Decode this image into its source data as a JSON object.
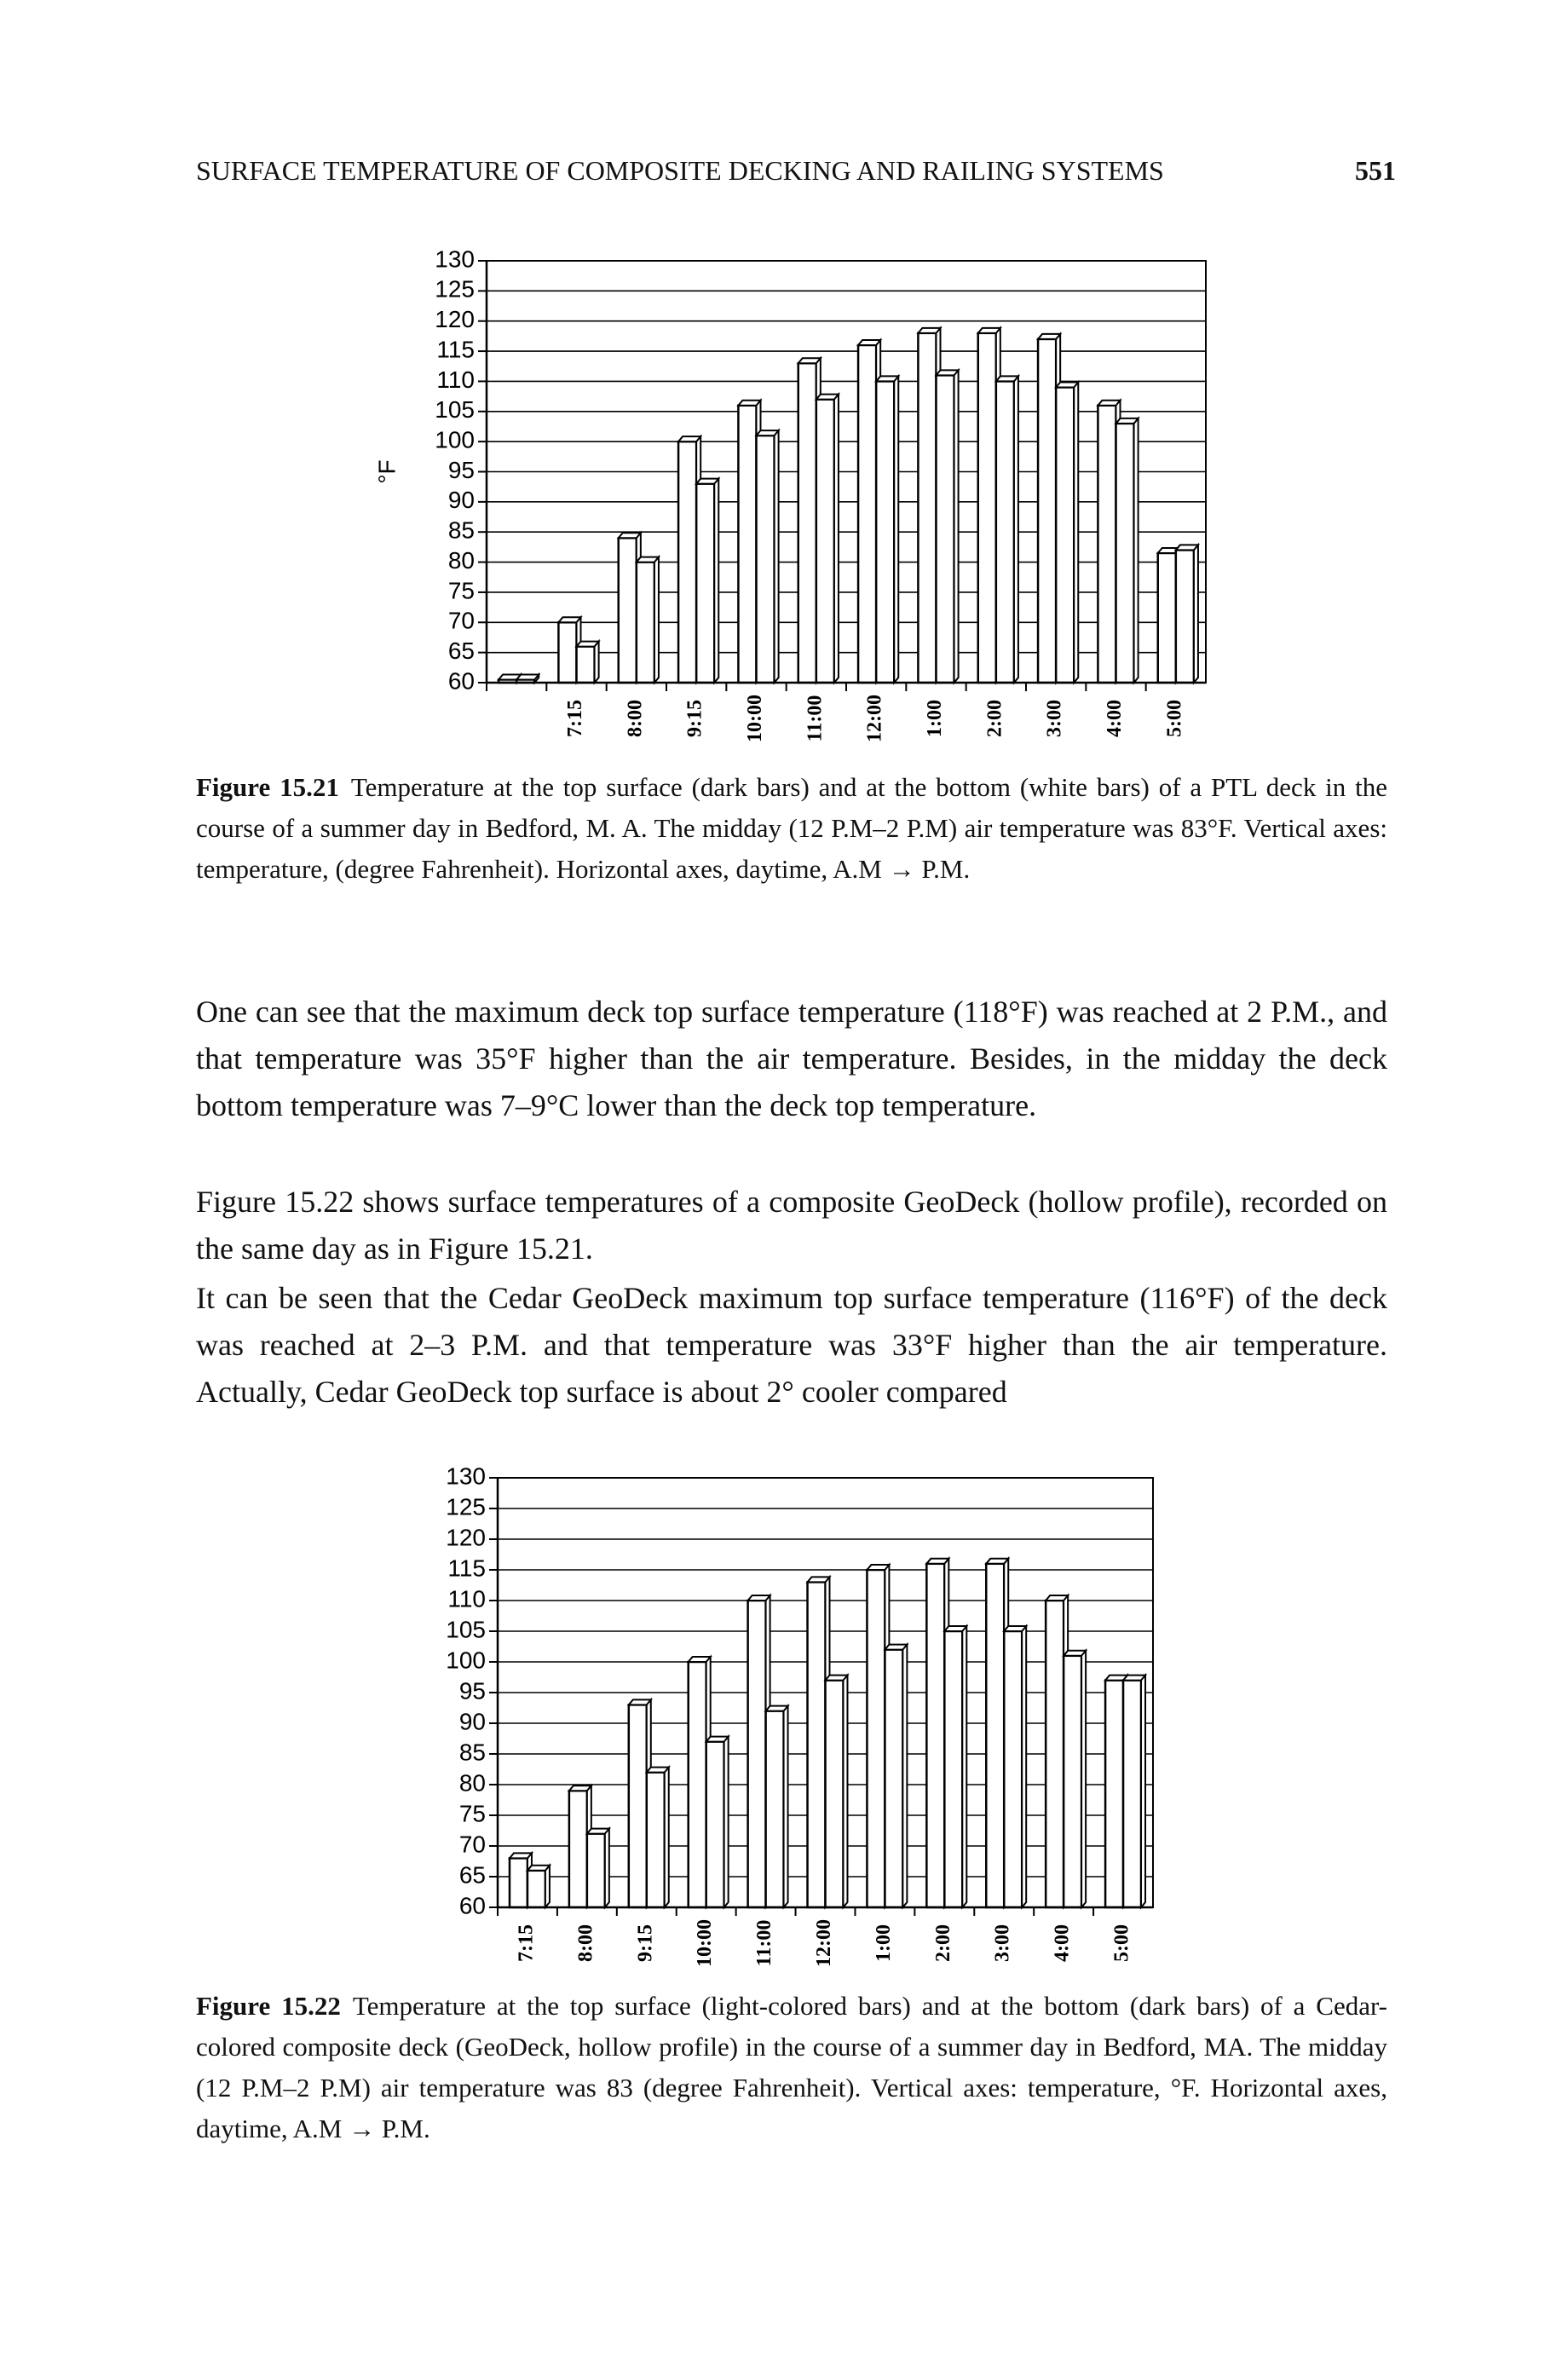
{
  "header": {
    "title": "SURFACE TEMPERATURE OF COMPOSITE DECKING AND RAILING SYSTEMS",
    "page": "551"
  },
  "chart_data": [
    {
      "type": "bar",
      "ylabel": "°F",
      "categories": [
        null,
        "7:15",
        "8:00",
        "9:15",
        "10:00",
        "11:00",
        "12:00",
        "1:00",
        "2:00",
        "3:00",
        "4:00",
        "5:00"
      ],
      "series": [
        {
          "color": "#ffffff",
          "values": [
            60.5,
            70,
            84,
            100,
            106,
            113,
            116,
            118,
            118,
            117,
            106,
            81.5
          ]
        },
        {
          "color": "#ffffff",
          "values": [
            60.5,
            66,
            80,
            93,
            101,
            107,
            110,
            111,
            110,
            109,
            103,
            82
          ]
        }
      ],
      "ylim": [
        60,
        130
      ],
      "yticks": [
        60,
        65,
        70,
        75,
        80,
        85,
        90,
        95,
        100,
        105,
        110,
        115,
        120,
        125,
        130
      ],
      "grid": true
    },
    {
      "type": "bar",
      "categories": [
        "7:15",
        "8:00",
        "9:15",
        "10:00",
        "11:00",
        "12:00",
        "1:00",
        "2:00",
        "3:00",
        "4:00",
        "5:00"
      ],
      "series": [
        {
          "color": "#ffffff",
          "values": [
            68,
            79,
            93,
            100,
            110,
            113,
            115,
            116,
            116,
            110,
            97
          ]
        },
        {
          "color": "#ffffff",
          "values": [
            66,
            72,
            82,
            87,
            92,
            97,
            102,
            105,
            105,
            101,
            97
          ]
        }
      ],
      "ylim": [
        60,
        130
      ],
      "yticks": [
        60,
        65,
        70,
        75,
        80,
        85,
        90,
        95,
        100,
        105,
        110,
        115,
        120,
        125,
        130
      ],
      "grid": true
    }
  ],
  "captions": [
    {
      "label": "Figure 15.21",
      "text": "Temperature at the top surface (dark bars) and at the bottom (white bars) of a PTL deck in the course of a summer day in Bedford, M. A. The midday (12 P.M–2 P.M) air temperature was 83°F. Vertical axes: temperature, (degree Fahrenheit). Horizontal axes, daytime, A.M → P.M."
    },
    {
      "label": "Figure 15.22",
      "text": "Temperature at the top surface (light-colored bars) and at the bottom (dark bars) of a Cedar-colored composite deck (GeoDeck, hollow profile) in the course of a summer day in Bedford, MA. The midday (12 P.M–2 P.M) air temperature was 83 (degree Fahrenheit). Vertical axes: temperature, °F. Horizontal axes, daytime, A.M → P.M."
    }
  ],
  "paragraphs": [
    "One can see that the maximum deck top surface temperature (118°F) was reached at 2 P.M., and that temperature was 35°F higher than the air temperature. Besides, in the midday the deck bottom temperature was 7–9°C lower than the deck top temperature.",
    "Figure 15.22 shows surface temperatures of a composite GeoDeck (hollow profile), recorded on the same day as in Figure 15.21.",
    "It can be seen that the Cedar GeoDeck maximum top surface temperature (116°F) of the deck was reached at 2–3 P.M. and that temperature was 33°F higher than the air temperature. Actually, Cedar GeoDeck top surface is about 2° cooler compared"
  ]
}
